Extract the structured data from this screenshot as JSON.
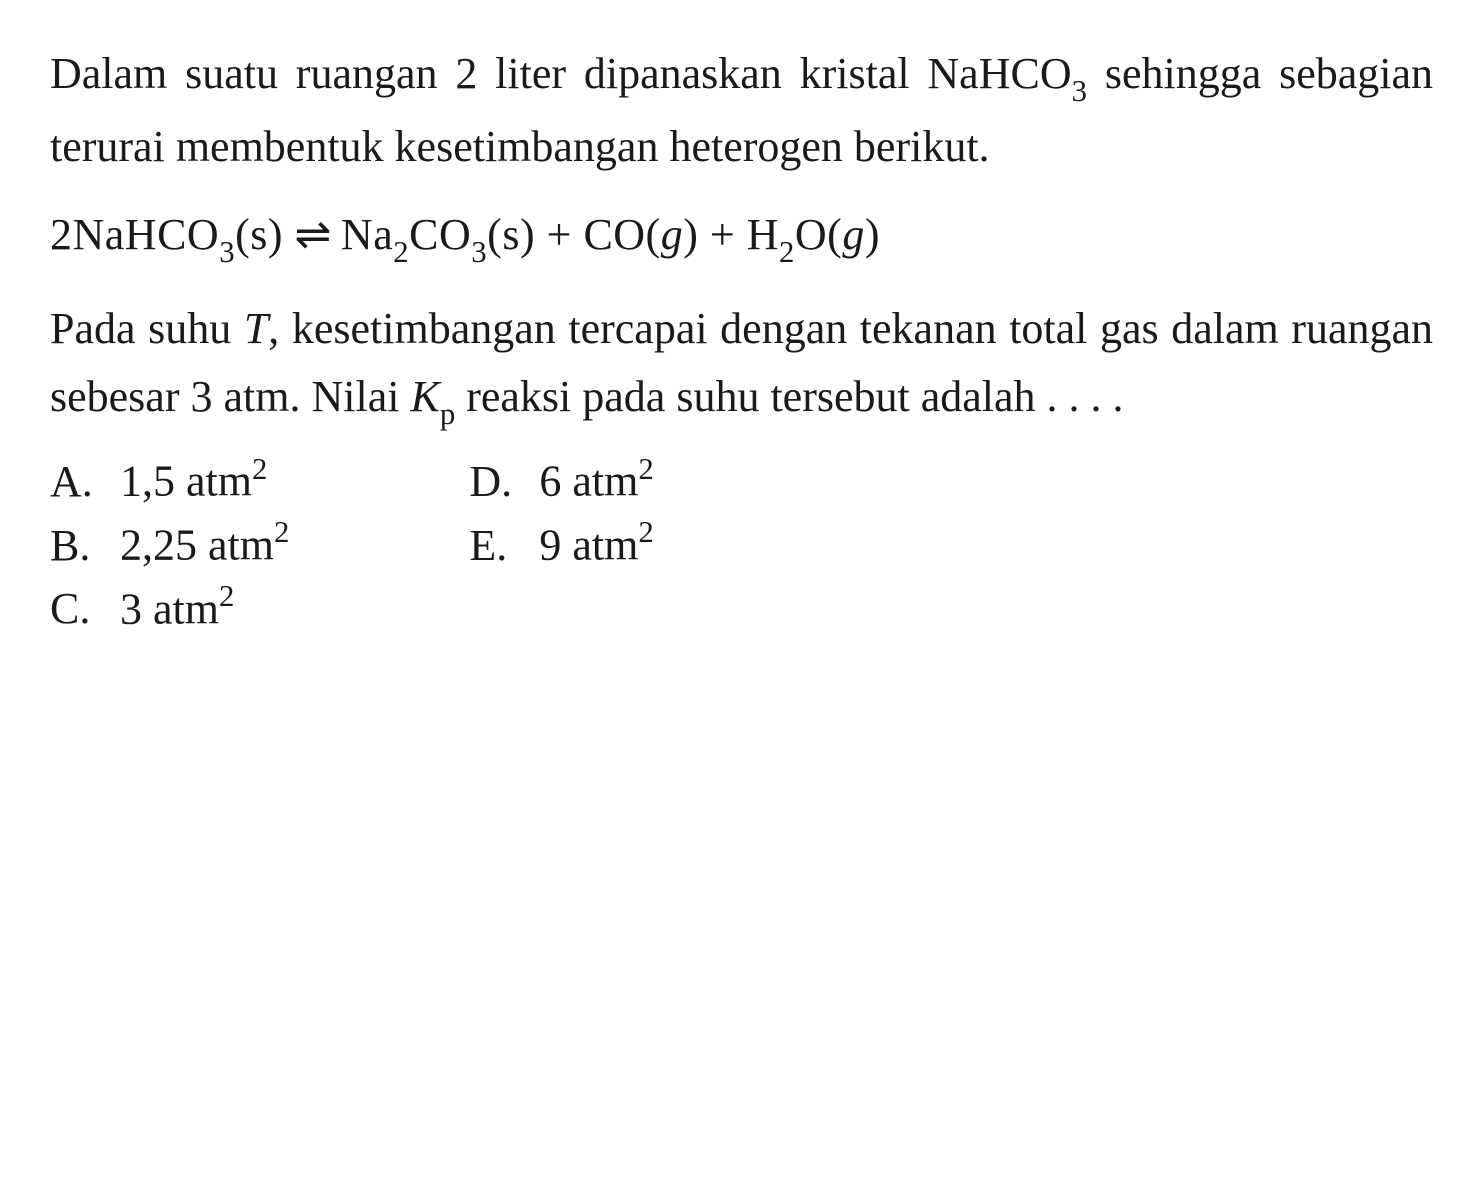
{
  "question": {
    "intro_part1": "Dalam suatu ruangan 2 liter dipanaskan kristal NaHCO",
    "intro_sub1": "3",
    "intro_part2": " sehingga sebagian terurai membentuk kesetimbangan heterogen berikut.",
    "equation": {
      "lhs_coef": "2NaHCO",
      "lhs_sub": "3",
      "lhs_state": "(s)",
      "arrow": "⇌",
      "rhs1": "Na",
      "rhs1_sub1": "2",
      "rhs1_mid": "CO",
      "rhs1_sub2": "3",
      "rhs1_state": "(s)",
      "plus1": " + ",
      "rhs2": "CO(",
      "rhs2_var": "g",
      "rhs2_close": ")",
      "plus2": " + ",
      "rhs3": "H",
      "rhs3_sub": "2",
      "rhs3_mid": "O(",
      "rhs3_var": "g",
      "rhs3_close": ")"
    },
    "body_part1": "Pada suhu ",
    "body_var1": "T",
    "body_part2": ", kesetimbangan tercapai dengan tekanan total gas dalam ruangan sebesar 3 atm. Nilai ",
    "body_var2": "K",
    "body_var2_sub": "p",
    "body_part3": " reaksi pada suhu tersebut adalah . . . ."
  },
  "options": {
    "A": {
      "label": "A.",
      "value": "1,5 atm",
      "sup": "2"
    },
    "B": {
      "label": "B.",
      "value": "2,25 atm",
      "sup": "2"
    },
    "C": {
      "label": "C.",
      "value": "3 atm",
      "sup": "2"
    },
    "D": {
      "label": "D.",
      "value": "6 atm",
      "sup": "2"
    },
    "E": {
      "label": "E.",
      "value": "9 atm",
      "sup": "2"
    }
  },
  "styling": {
    "background_color": "#ffffff",
    "text_color": "#1a1a1a",
    "font_family": "Georgia, Times New Roman, serif",
    "base_fontsize": 44,
    "line_height": 1.55,
    "sub_scale": 0.7,
    "sup_scale": 0.7
  }
}
